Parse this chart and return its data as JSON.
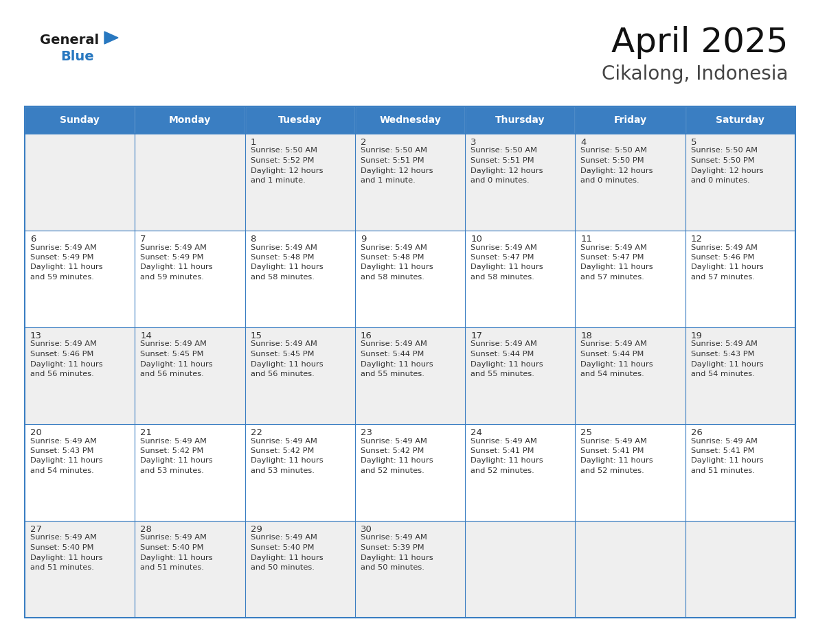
{
  "title": "April 2025",
  "subtitle": "Cikalong, Indonesia",
  "header_bg": "#3A7EC2",
  "header_text": "#FFFFFF",
  "row_bg_odd": "#EFEFEF",
  "row_bg_even": "#FFFFFF",
  "border_color": "#3A7EC2",
  "text_color": "#333333",
  "day_names": [
    "Sunday",
    "Monday",
    "Tuesday",
    "Wednesday",
    "Thursday",
    "Friday",
    "Saturday"
  ],
  "days": [
    {
      "day": 1,
      "col": 2,
      "row": 0,
      "sunrise": "5:50 AM",
      "sunset": "5:52 PM",
      "daylight": "12 hours\nand 1 minute."
    },
    {
      "day": 2,
      "col": 3,
      "row": 0,
      "sunrise": "5:50 AM",
      "sunset": "5:51 PM",
      "daylight": "12 hours\nand 1 minute."
    },
    {
      "day": 3,
      "col": 4,
      "row": 0,
      "sunrise": "5:50 AM",
      "sunset": "5:51 PM",
      "daylight": "12 hours\nand 0 minutes."
    },
    {
      "day": 4,
      "col": 5,
      "row": 0,
      "sunrise": "5:50 AM",
      "sunset": "5:50 PM",
      "daylight": "12 hours\nand 0 minutes."
    },
    {
      "day": 5,
      "col": 6,
      "row": 0,
      "sunrise": "5:50 AM",
      "sunset": "5:50 PM",
      "daylight": "12 hours\nand 0 minutes."
    },
    {
      "day": 6,
      "col": 0,
      "row": 1,
      "sunrise": "5:49 AM",
      "sunset": "5:49 PM",
      "daylight": "11 hours\nand 59 minutes."
    },
    {
      "day": 7,
      "col": 1,
      "row": 1,
      "sunrise": "5:49 AM",
      "sunset": "5:49 PM",
      "daylight": "11 hours\nand 59 minutes."
    },
    {
      "day": 8,
      "col": 2,
      "row": 1,
      "sunrise": "5:49 AM",
      "sunset": "5:48 PM",
      "daylight": "11 hours\nand 58 minutes."
    },
    {
      "day": 9,
      "col": 3,
      "row": 1,
      "sunrise": "5:49 AM",
      "sunset": "5:48 PM",
      "daylight": "11 hours\nand 58 minutes."
    },
    {
      "day": 10,
      "col": 4,
      "row": 1,
      "sunrise": "5:49 AM",
      "sunset": "5:47 PM",
      "daylight": "11 hours\nand 58 minutes."
    },
    {
      "day": 11,
      "col": 5,
      "row": 1,
      "sunrise": "5:49 AM",
      "sunset": "5:47 PM",
      "daylight": "11 hours\nand 57 minutes."
    },
    {
      "day": 12,
      "col": 6,
      "row": 1,
      "sunrise": "5:49 AM",
      "sunset": "5:46 PM",
      "daylight": "11 hours\nand 57 minutes."
    },
    {
      "day": 13,
      "col": 0,
      "row": 2,
      "sunrise": "5:49 AM",
      "sunset": "5:46 PM",
      "daylight": "11 hours\nand 56 minutes."
    },
    {
      "day": 14,
      "col": 1,
      "row": 2,
      "sunrise": "5:49 AM",
      "sunset": "5:45 PM",
      "daylight": "11 hours\nand 56 minutes."
    },
    {
      "day": 15,
      "col": 2,
      "row": 2,
      "sunrise": "5:49 AM",
      "sunset": "5:45 PM",
      "daylight": "11 hours\nand 56 minutes."
    },
    {
      "day": 16,
      "col": 3,
      "row": 2,
      "sunrise": "5:49 AM",
      "sunset": "5:44 PM",
      "daylight": "11 hours\nand 55 minutes."
    },
    {
      "day": 17,
      "col": 4,
      "row": 2,
      "sunrise": "5:49 AM",
      "sunset": "5:44 PM",
      "daylight": "11 hours\nand 55 minutes."
    },
    {
      "day": 18,
      "col": 5,
      "row": 2,
      "sunrise": "5:49 AM",
      "sunset": "5:44 PM",
      "daylight": "11 hours\nand 54 minutes."
    },
    {
      "day": 19,
      "col": 6,
      "row": 2,
      "sunrise": "5:49 AM",
      "sunset": "5:43 PM",
      "daylight": "11 hours\nand 54 minutes."
    },
    {
      "day": 20,
      "col": 0,
      "row": 3,
      "sunrise": "5:49 AM",
      "sunset": "5:43 PM",
      "daylight": "11 hours\nand 54 minutes."
    },
    {
      "day": 21,
      "col": 1,
      "row": 3,
      "sunrise": "5:49 AM",
      "sunset": "5:42 PM",
      "daylight": "11 hours\nand 53 minutes."
    },
    {
      "day": 22,
      "col": 2,
      "row": 3,
      "sunrise": "5:49 AM",
      "sunset": "5:42 PM",
      "daylight": "11 hours\nand 53 minutes."
    },
    {
      "day": 23,
      "col": 3,
      "row": 3,
      "sunrise": "5:49 AM",
      "sunset": "5:42 PM",
      "daylight": "11 hours\nand 52 minutes."
    },
    {
      "day": 24,
      "col": 4,
      "row": 3,
      "sunrise": "5:49 AM",
      "sunset": "5:41 PM",
      "daylight": "11 hours\nand 52 minutes."
    },
    {
      "day": 25,
      "col": 5,
      "row": 3,
      "sunrise": "5:49 AM",
      "sunset": "5:41 PM",
      "daylight": "11 hours\nand 52 minutes."
    },
    {
      "day": 26,
      "col": 6,
      "row": 3,
      "sunrise": "5:49 AM",
      "sunset": "5:41 PM",
      "daylight": "11 hours\nand 51 minutes."
    },
    {
      "day": 27,
      "col": 0,
      "row": 4,
      "sunrise": "5:49 AM",
      "sunset": "5:40 PM",
      "daylight": "11 hours\nand 51 minutes."
    },
    {
      "day": 28,
      "col": 1,
      "row": 4,
      "sunrise": "5:49 AM",
      "sunset": "5:40 PM",
      "daylight": "11 hours\nand 51 minutes."
    },
    {
      "day": 29,
      "col": 2,
      "row": 4,
      "sunrise": "5:49 AM",
      "sunset": "5:40 PM",
      "daylight": "11 hours\nand 50 minutes."
    },
    {
      "day": 30,
      "col": 3,
      "row": 4,
      "sunrise": "5:49 AM",
      "sunset": "5:39 PM",
      "daylight": "11 hours\nand 50 minutes."
    }
  ],
  "num_rows": 5,
  "num_cols": 7,
  "logo_general_color": "#1a1a1a",
  "logo_blue_color": "#2878C0",
  "logo_triangle_color": "#2878C0"
}
